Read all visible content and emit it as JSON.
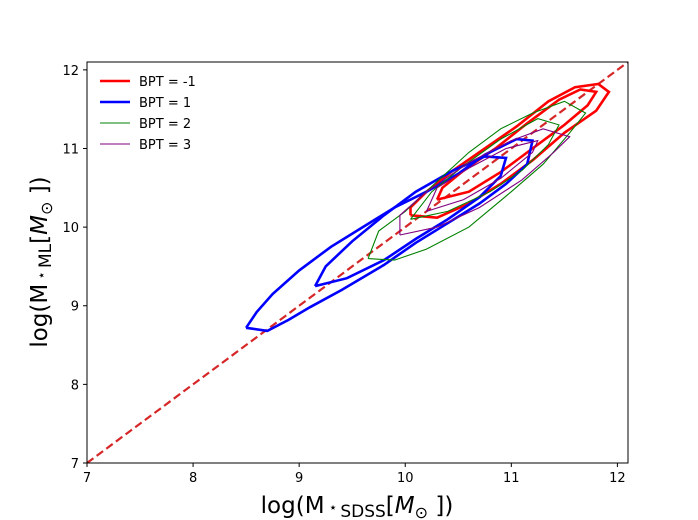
{
  "chart_data": {
    "type": "contour",
    "xlabel": {
      "base": "log(M",
      "star": "⋆",
      "sub": "SDSS",
      "open": "[",
      "mvar": "M",
      "sun": "⊙",
      "close": " ])"
    },
    "ylabel": {
      "base": "log(M",
      "star": "⋆",
      "sub": "ML",
      "open": "[",
      "mvar": "M",
      "sun": "⊙",
      "close": " ])"
    },
    "xlim": [
      7,
      12.1
    ],
    "ylim": [
      7,
      12.1
    ],
    "xticks": [
      "7",
      "8",
      "9",
      "10",
      "11",
      "12"
    ],
    "yticks": [
      "7",
      "8",
      "9",
      "10",
      "11",
      "12"
    ],
    "legend_position": "upper-left",
    "one_to_one_line": {
      "color": "#d62728",
      "style": "dashed",
      "x": [
        7,
        12.1
      ],
      "y": [
        7,
        12.1
      ]
    },
    "series": [
      {
        "name": "BPT = -1",
        "color": "#ff0000",
        "width": "thick",
        "contours": [
          [
            [
              10.05,
              10.15
            ],
            [
              10.3,
              10.12
            ],
            [
              10.6,
              10.3
            ],
            [
              10.9,
              10.55
            ],
            [
              11.2,
              10.85
            ],
            [
              11.5,
              11.2
            ],
            [
              11.8,
              11.48
            ],
            [
              11.92,
              11.72
            ],
            [
              11.82,
              11.82
            ],
            [
              11.6,
              11.78
            ],
            [
              11.35,
              11.6
            ],
            [
              11.05,
              11.28
            ],
            [
              10.75,
              11.0
            ],
            [
              10.45,
              10.72
            ],
            [
              10.2,
              10.45
            ],
            [
              10.05,
              10.25
            ],
            [
              10.05,
              10.15
            ]
          ],
          [
            [
              10.3,
              10.35
            ],
            [
              10.6,
              10.45
            ],
            [
              10.9,
              10.7
            ],
            [
              11.2,
              11.0
            ],
            [
              11.5,
              11.3
            ],
            [
              11.72,
              11.55
            ],
            [
              11.8,
              11.72
            ],
            [
              11.65,
              11.75
            ],
            [
              11.45,
              11.62
            ],
            [
              11.15,
              11.32
            ],
            [
              10.85,
              11.0
            ],
            [
              10.55,
              10.72
            ],
            [
              10.35,
              10.5
            ],
            [
              10.3,
              10.35
            ]
          ]
        ]
      },
      {
        "name": "BPT = 1",
        "color": "#0000ff",
        "width": "thick",
        "contours": [
          [
            [
              8.5,
              8.72
            ],
            [
              8.7,
              8.68
            ],
            [
              8.9,
              8.82
            ],
            [
              9.1,
              8.98
            ],
            [
              9.4,
              9.2
            ],
            [
              9.8,
              9.52
            ],
            [
              10.1,
              9.8
            ],
            [
              10.4,
              10.05
            ],
            [
              10.7,
              10.3
            ],
            [
              10.95,
              10.55
            ],
            [
              11.15,
              10.8
            ],
            [
              11.2,
              11.1
            ],
            [
              11.05,
              11.12
            ],
            [
              10.75,
              10.92
            ],
            [
              10.5,
              10.68
            ],
            [
              10.2,
              10.45
            ],
            [
              9.9,
              10.25
            ],
            [
              9.6,
              10.0
            ],
            [
              9.3,
              9.75
            ],
            [
              9.0,
              9.45
            ],
            [
              8.75,
              9.15
            ],
            [
              8.6,
              8.92
            ],
            [
              8.5,
              8.72
            ]
          ],
          [
            [
              9.15,
              9.25
            ],
            [
              9.45,
              9.35
            ],
            [
              9.8,
              9.58
            ],
            [
              10.1,
              9.85
            ],
            [
              10.4,
              10.1
            ],
            [
              10.7,
              10.38
            ],
            [
              10.9,
              10.65
            ],
            [
              10.95,
              10.88
            ],
            [
              10.75,
              10.9
            ],
            [
              10.45,
              10.72
            ],
            [
              10.1,
              10.45
            ],
            [
              9.8,
              10.15
            ],
            [
              9.5,
              9.82
            ],
            [
              9.25,
              9.5
            ],
            [
              9.15,
              9.25
            ]
          ]
        ]
      },
      {
        "name": "BPT = 2",
        "color": "#008000",
        "width": "thin",
        "contours": [
          [
            [
              9.65,
              9.6
            ],
            [
              9.9,
              9.58
            ],
            [
              10.2,
              9.72
            ],
            [
              10.6,
              10.0
            ],
            [
              11.0,
              10.45
            ],
            [
              11.3,
              10.8
            ],
            [
              11.55,
              11.2
            ],
            [
              11.7,
              11.45
            ],
            [
              11.5,
              11.6
            ],
            [
              11.2,
              11.45
            ],
            [
              10.9,
              11.25
            ],
            [
              10.6,
              10.95
            ],
            [
              10.3,
              10.58
            ],
            [
              10.0,
              10.2
            ],
            [
              9.75,
              9.95
            ],
            [
              9.65,
              9.6
            ]
          ],
          [
            [
              10.05,
              10.1
            ],
            [
              10.4,
              10.2
            ],
            [
              10.8,
              10.45
            ],
            [
              11.1,
              10.72
            ],
            [
              11.35,
              11.05
            ],
            [
              11.45,
              11.3
            ],
            [
              11.25,
              11.38
            ],
            [
              10.9,
              11.12
            ],
            [
              10.55,
              10.78
            ],
            [
              10.25,
              10.45
            ],
            [
              10.05,
              10.1
            ]
          ]
        ]
      },
      {
        "name": "BPT = 3",
        "color": "#800080",
        "width": "thin",
        "contours": [
          [
            [
              9.95,
              9.9
            ],
            [
              10.3,
              10.0
            ],
            [
              10.7,
              10.25
            ],
            [
              11.1,
              10.6
            ],
            [
              11.4,
              10.95
            ],
            [
              11.55,
              11.15
            ],
            [
              11.3,
              11.25
            ],
            [
              11.0,
              11.1
            ],
            [
              10.6,
              10.82
            ],
            [
              10.2,
              10.45
            ],
            [
              9.95,
              10.15
            ],
            [
              9.95,
              9.9
            ]
          ],
          [
            [
              10.2,
              10.2
            ],
            [
              10.55,
              10.35
            ],
            [
              10.9,
              10.62
            ],
            [
              11.2,
              10.95
            ],
            [
              11.25,
              11.1
            ],
            [
              10.95,
              11.0
            ],
            [
              10.6,
              10.75
            ],
            [
              10.3,
              10.5
            ],
            [
              10.2,
              10.2
            ]
          ]
        ]
      }
    ]
  }
}
